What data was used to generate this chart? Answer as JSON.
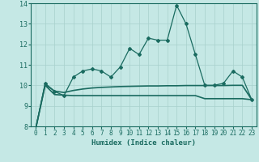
{
  "xlabel": "Humidex (Indice chaleur)",
  "xlim": [
    -0.5,
    23.5
  ],
  "ylim": [
    8,
    14
  ],
  "yticks": [
    8,
    9,
    10,
    11,
    12,
    13,
    14
  ],
  "xticks": [
    0,
    1,
    2,
    3,
    4,
    5,
    6,
    7,
    8,
    9,
    10,
    11,
    12,
    13,
    14,
    15,
    16,
    17,
    18,
    19,
    20,
    21,
    22,
    23
  ],
  "bg_color": "#c5e8e5",
  "grid_color": "#a8d0cc",
  "line_color": "#1a6b60",
  "series1": [
    7.9,
    10.1,
    9.7,
    9.5,
    10.4,
    10.7,
    10.8,
    10.7,
    10.4,
    10.9,
    11.8,
    11.5,
    12.3,
    12.2,
    12.2,
    13.9,
    13.0,
    11.5,
    10.0,
    10.0,
    10.1,
    10.7,
    10.4,
    9.3
  ],
  "series2": [
    7.9,
    10.05,
    9.72,
    9.65,
    9.75,
    9.82,
    9.87,
    9.9,
    9.92,
    9.94,
    9.95,
    9.96,
    9.97,
    9.97,
    9.98,
    9.98,
    9.99,
    9.99,
    9.99,
    9.99,
    9.99,
    10.0,
    10.0,
    9.3
  ],
  "series3": [
    7.9,
    10.0,
    9.55,
    9.52,
    9.5,
    9.5,
    9.5,
    9.5,
    9.5,
    9.5,
    9.5,
    9.5,
    9.5,
    9.5,
    9.5,
    9.5,
    9.5,
    9.5,
    9.35,
    9.35,
    9.35,
    9.35,
    9.35,
    9.3
  ]
}
